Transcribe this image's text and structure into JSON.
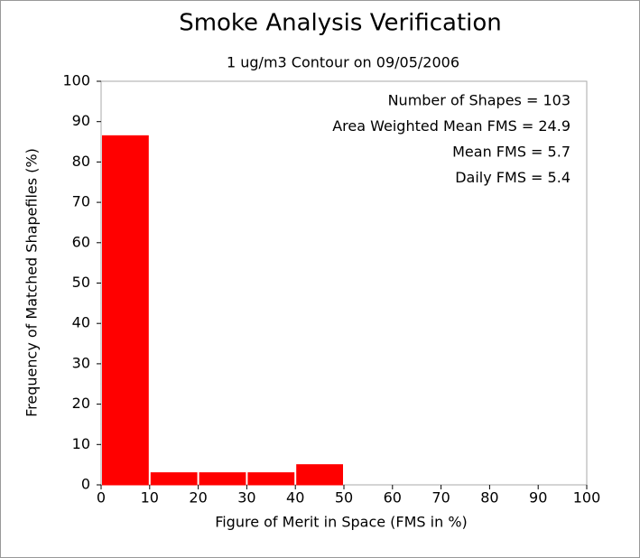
{
  "chart_data": {
    "type": "histogram",
    "title": "Smoke Analysis Verification",
    "subtitle": "1 ug/m3 Contour on 09/05/2006",
    "xlabel": "Figure of Merit in Space (FMS in %)",
    "ylabel": "Frequency of Matched Shapefiles (%)",
    "annotations": [
      "Number of Shapes = 103",
      "Area Weighted Mean FMS = 24.9",
      "Mean FMS = 5.7",
      "Daily FMS = 5.4"
    ],
    "bins": [
      0,
      10,
      20,
      30,
      40,
      50,
      60,
      70,
      80,
      90,
      100
    ],
    "values": [
      86.5,
      3,
      3,
      3,
      5,
      0,
      0,
      0,
      0,
      0
    ],
    "color": "#ff0000",
    "xlim": [
      0,
      100
    ],
    "ylim": [
      0,
      100
    ],
    "xticks": [
      0,
      10,
      20,
      30,
      40,
      50,
      60,
      70,
      80,
      90,
      100
    ],
    "yticks": [
      0,
      10,
      20,
      30,
      40,
      50,
      60,
      70,
      80,
      90,
      100
    ]
  }
}
